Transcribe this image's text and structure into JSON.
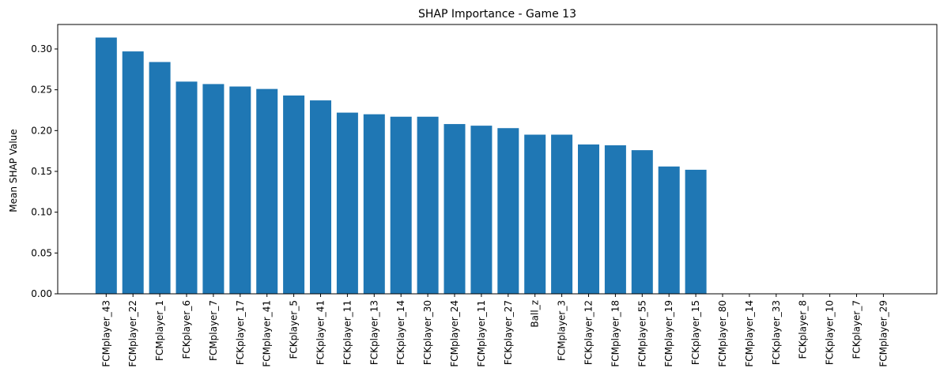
{
  "chart_data": {
    "type": "bar",
    "title": "SHAP Importance - Game 13",
    "xlabel": "",
    "ylabel": "Mean SHAP Value",
    "ylim": [
      0,
      0.33
    ],
    "yticks": [
      0.0,
      0.05,
      0.1,
      0.15,
      0.2,
      0.25,
      0.3
    ],
    "ytick_labels": [
      "0.00",
      "0.05",
      "0.10",
      "0.15",
      "0.20",
      "0.25",
      "0.30"
    ],
    "categories": [
      "FCMplayer_43",
      "FCMplayer_22",
      "FCMplayer_1",
      "FCKplayer_6",
      "FCMplayer_7",
      "FCKplayer_17",
      "FCMplayer_41",
      "FCKplayer_5",
      "FCKplayer_41",
      "FCKplayer_11",
      "FCKplayer_13",
      "FCKplayer_14",
      "FCKplayer_30",
      "FCMplayer_24",
      "FCMplayer_11",
      "FCKplayer_27",
      "Ball_z",
      "FCMplayer_3",
      "FCKplayer_12",
      "FCMplayer_18",
      "FCMplayer_55",
      "FCMplayer_19",
      "FCKplayer_15",
      "FCMplayer_80",
      "FCMplayer_14",
      "FCKplayer_33",
      "FCKplayer_8",
      "FCKplayer_10",
      "FCKplayer_7",
      "FCMplayer_29"
    ],
    "values": [
      0.314,
      0.297,
      0.284,
      0.26,
      0.257,
      0.254,
      0.251,
      0.243,
      0.237,
      0.222,
      0.22,
      0.217,
      0.217,
      0.208,
      0.206,
      0.203,
      0.195,
      0.195,
      0.183,
      0.182,
      0.176,
      0.156,
      0.152,
      0.0,
      0.0,
      0.0,
      0.0,
      0.0,
      0.0,
      0.0
    ],
    "bar_color": "#1f77b4",
    "grid": false,
    "legend": "none"
  }
}
